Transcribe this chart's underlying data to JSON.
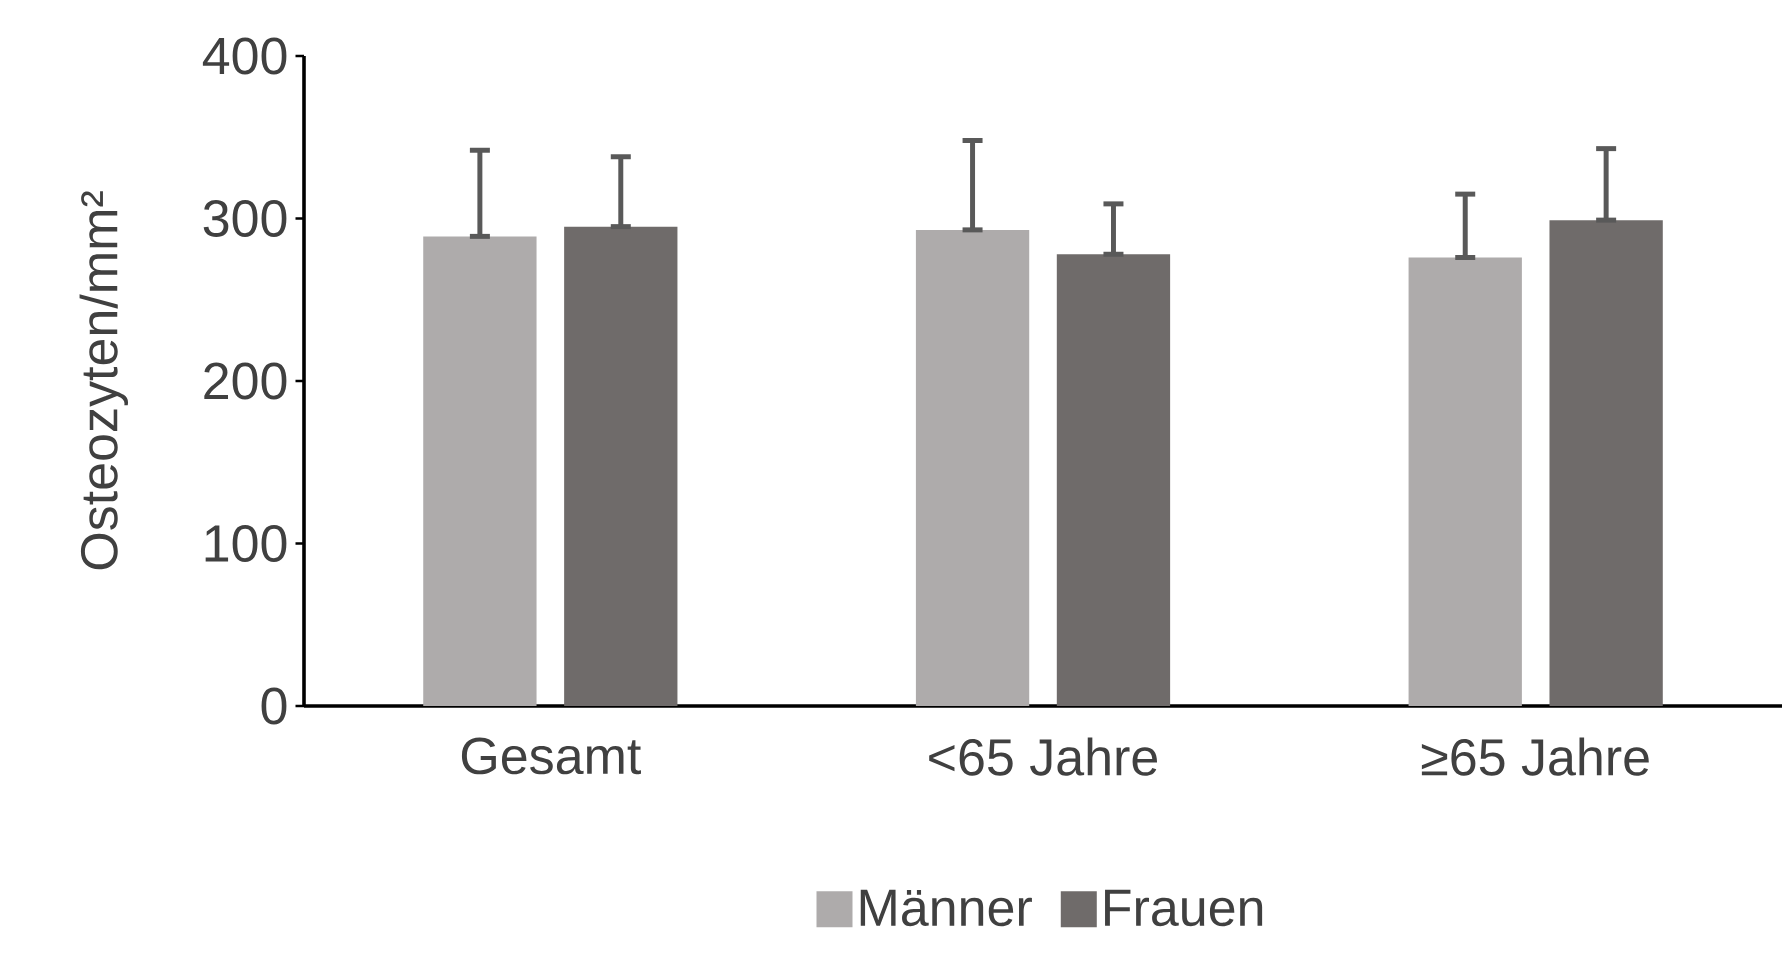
{
  "chart_data": {
    "type": "bar",
    "ylabel": "Osteozyten/mm²",
    "categories": [
      "Gesamt",
      "<65 Jahre",
      "≥65 Jahre"
    ],
    "series": [
      {
        "name": "Männer",
        "color": "#aeabab",
        "values": [
          289,
          293,
          276
        ],
        "errors": [
          [
            289,
            342
          ],
          [
            293,
            348
          ],
          [
            276,
            315
          ]
        ]
      },
      {
        "name": "Frauen",
        "color": "#6f6b6a",
        "values": [
          295,
          278,
          299
        ],
        "errors": [
          [
            295,
            338
          ],
          [
            278,
            309
          ],
          [
            299,
            343
          ]
        ]
      }
    ],
    "ylim": [
      0,
      400
    ],
    "yticks": [
      0,
      100,
      200,
      300,
      400
    ],
    "legend": "bottom",
    "grid": false
  }
}
